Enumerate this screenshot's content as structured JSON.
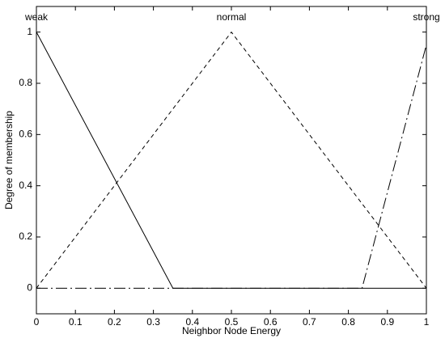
{
  "chart_data": {
    "type": "line",
    "xlabel": "Neighbor Node Energy",
    "ylabel": "Degree of membership",
    "xlim": [
      0,
      1
    ],
    "ylim": [
      -0.1,
      1.1
    ],
    "xticks": [
      0,
      0.1,
      0.2,
      0.3,
      0.4,
      0.5,
      0.6,
      0.7,
      0.8,
      0.9,
      1
    ],
    "yticks": [
      0,
      0.2,
      0.4,
      0.6,
      0.8,
      1
    ],
    "grid": false,
    "series": [
      {
        "name": "weak",
        "color": "#000000",
        "dash": "solid",
        "x": [
          0,
          0.35,
          1
        ],
        "values": [
          1,
          0,
          0
        ]
      },
      {
        "name": "normal",
        "color": "#000000",
        "dash": "dashed",
        "x": [
          0,
          0.5,
          1
        ],
        "values": [
          0,
          1,
          0
        ]
      },
      {
        "name": "strong",
        "color": "#000000",
        "dash": "dashdot",
        "x": [
          0,
          0.835,
          1
        ],
        "values": [
          0,
          0,
          0.95
        ]
      }
    ]
  }
}
